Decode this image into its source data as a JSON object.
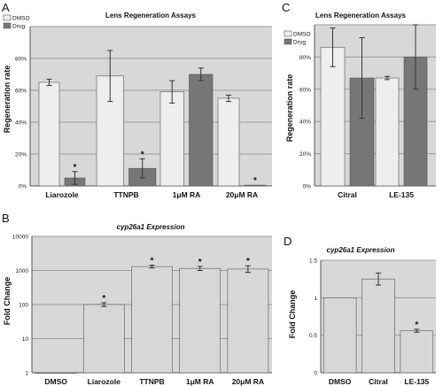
{
  "chart_data": [
    {
      "panel": "A",
      "type": "bar",
      "title": "Lens Regeneration Assays",
      "ylabel": "Regeneration rate",
      "xlabel": "",
      "ylim": [
        0,
        100
      ],
      "ytick_labels": [
        "0%",
        "20%",
        "40%",
        "60%",
        "80%"
      ],
      "categories": [
        "Liarozole",
        "TTNPB",
        "1μM RA",
        "20μM RA"
      ],
      "series": [
        {
          "name": "DMSO",
          "color": "#eeeeee",
          "values": [
            65,
            69,
            59,
            55
          ],
          "errors": [
            2,
            16,
            7,
            2
          ]
        },
        {
          "name": "Drug",
          "color": "#777777",
          "values": [
            5,
            11,
            70,
            0.5
          ],
          "errors": [
            4,
            6,
            4,
            0
          ]
        }
      ],
      "significance": [
        "*",
        "*",
        "",
        "*"
      ],
      "grid": true,
      "legend": "top-left"
    },
    {
      "panel": "B",
      "type": "bar",
      "title": "cyp26a1 Expression",
      "ylabel": "Fold Change",
      "xlabel": "",
      "yscale": "log",
      "ylim": [
        1,
        10000
      ],
      "ytick_labels": [
        "1",
        "10",
        "100",
        "1000",
        "10000"
      ],
      "categories": [
        "DMSO",
        "Liarozole",
        "TTNPB",
        "1μM RA",
        "20μM RA"
      ],
      "values": [
        1,
        100,
        1300,
        1150,
        1100
      ],
      "lower": [
        1,
        88,
        1180,
        1000,
        880
      ],
      "upper": [
        1,
        113,
        1430,
        1320,
        1370
      ],
      "significance": [
        "",
        "*",
        "*",
        "*",
        "*"
      ],
      "color": "#d7d7d7",
      "grid": true
    },
    {
      "panel": "C",
      "type": "bar",
      "title": "Lens Regeneration Assays",
      "ylabel": "Regeneration rate",
      "xlabel": "",
      "ylim": [
        0,
        100
      ],
      "ytick_labels": [
        "0%",
        "20%",
        "40%",
        "60%",
        "80%"
      ],
      "categories": [
        "Citral",
        "LE-135"
      ],
      "series": [
        {
          "name": "DMSO",
          "color": "#eeeeee",
          "values": [
            86,
            67
          ],
          "errors": [
            12,
            1
          ]
        },
        {
          "name": "Drug",
          "color": "#777777",
          "values": [
            67,
            80
          ],
          "errors": [
            25,
            20
          ]
        }
      ],
      "significance": [
        "",
        ""
      ],
      "grid": true,
      "legend": "top-left"
    },
    {
      "panel": "D",
      "type": "bar",
      "title": "cyp26a1 Expression",
      "ylabel": "Fold Change",
      "xlabel": "",
      "ylim": [
        0,
        1.5
      ],
      "ytick_labels": [
        "0",
        "0.5",
        "1",
        "1.5"
      ],
      "categories": [
        "DMSO",
        "Citral",
        "LE-135"
      ],
      "values": [
        1,
        1.25,
        0.56
      ],
      "errors": [
        0,
        0.08,
        0.02
      ],
      "significance": [
        "",
        "",
        "*"
      ],
      "color": "#d7d7d7",
      "grid": true
    }
  ]
}
